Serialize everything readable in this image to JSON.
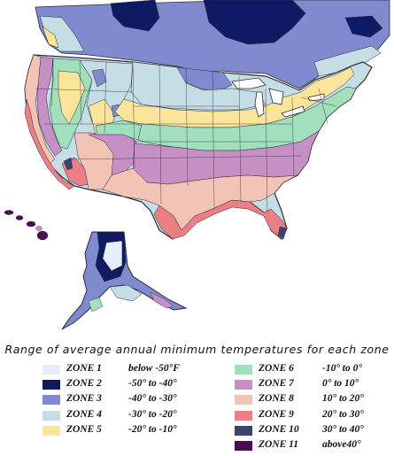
{
  "caption": "Range of average annual minimum temperatures for each zone",
  "colors": {
    "border": "#2b2b3a",
    "water": "#ffffff"
  },
  "legend": {
    "left": [
      {
        "label": "ZONE 1",
        "range": "below -50°F",
        "color": "#e6eefb"
      },
      {
        "label": "ZONE 2",
        "range": "-50° to -40°",
        "color": "#0e1a63"
      },
      {
        "label": "ZONE 3",
        "range": "-40° to -30°",
        "color": "#8189cf"
      },
      {
        "label": "ZONE 4",
        "range": "-30° to -20°",
        "color": "#c5dde4"
      },
      {
        "label": "ZONE 5",
        "range": "-20° to -10°",
        "color": "#fbe59b"
      }
    ],
    "right": [
      {
        "label": "ZONE 6",
        "range": "-10° to 0°",
        "color": "#a2dfbd"
      },
      {
        "label": "ZONE 7",
        "range": "0° to 10°",
        "color": "#c790c4"
      },
      {
        "label": "ZONE 8",
        "range": "10° to 20°",
        "color": "#f3c4b5"
      },
      {
        "label": "ZONE 9",
        "range": "20° to 30°",
        "color": "#ec7f86"
      },
      {
        "label": "ZONE 10",
        "range": "30° to 40°",
        "color": "#3b456c"
      },
      {
        "label": "ZONE 11",
        "range": "above40°",
        "color": "#4a0d52"
      }
    ]
  }
}
